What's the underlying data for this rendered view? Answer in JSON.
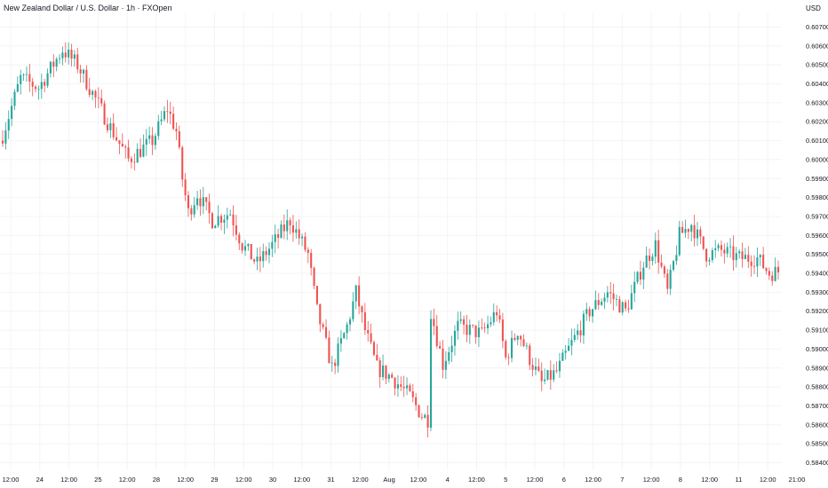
{
  "chart_data": {
    "type": "candlestick",
    "title": "New Zealand Dollar / U.S. Dollar · 1h · FXOpen",
    "currency": "USD",
    "ylim": [
      0.584,
      0.6072
    ],
    "y_ticks": [
      "0.60700",
      "0.60600",
      "0.60500",
      "0.60400",
      "0.60300",
      "0.60200",
      "0.60100",
      "0.60000",
      "0.59900",
      "0.59800",
      "0.59700",
      "0.59600",
      "0.59500",
      "0.59400",
      "0.59300",
      "0.59200",
      "0.59100",
      "0.59000",
      "0.58900",
      "0.58800",
      "0.58700",
      "0.58600",
      "0.58500",
      "0.58400"
    ],
    "x_ticks": [
      "12:00",
      "24",
      "12:00",
      "25",
      "12:00",
      "28",
      "12:00",
      "29",
      "12:00",
      "30",
      "12:00",
      "31",
      "12:00",
      "Aug",
      "12:00",
      "4",
      "12:00",
      "5",
      "12:00",
      "6",
      "12:00",
      "7",
      "12:00",
      "8",
      "12:00",
      "11",
      "12:00",
      "21:00"
    ],
    "candle_count": 260,
    "close_path": [
      [
        0,
        0.6013
      ],
      [
        6,
        0.6043
      ],
      [
        12,
        0.6038
      ],
      [
        20,
        0.6058
      ],
      [
        25,
        0.605
      ],
      [
        30,
        0.6035
      ],
      [
        36,
        0.6017
      ],
      [
        42,
        0.6
      ],
      [
        50,
        0.601
      ],
      [
        55,
        0.6027
      ],
      [
        58,
        0.6015
      ],
      [
        60,
        0.599
      ],
      [
        62,
        0.5972
      ],
      [
        65,
        0.5982
      ],
      [
        70,
        0.5968
      ],
      [
        76,
        0.5972
      ],
      [
        80,
        0.5955
      ],
      [
        85,
        0.5945
      ],
      [
        90,
        0.5955
      ],
      [
        96,
        0.5968
      ],
      [
        102,
        0.595
      ],
      [
        105,
        0.592
      ],
      [
        110,
        0.589
      ],
      [
        115,
        0.5912
      ],
      [
        118,
        0.593
      ],
      [
        121,
        0.591
      ],
      [
        125,
        0.589
      ],
      [
        130,
        0.5885
      ],
      [
        136,
        0.5875
      ],
      [
        140,
        0.5865
      ],
      [
        142,
        0.5863
      ],
      [
        143,
        0.592
      ],
      [
        147,
        0.5892
      ],
      [
        152,
        0.5912
      ],
      [
        160,
        0.5908
      ],
      [
        165,
        0.592
      ],
      [
        168,
        0.5895
      ],
      [
        172,
        0.591
      ],
      [
        176,
        0.5895
      ],
      [
        180,
        0.5882
      ],
      [
        185,
        0.5888
      ],
      [
        190,
        0.5903
      ],
      [
        196,
        0.592
      ],
      [
        202,
        0.593
      ],
      [
        208,
        0.592
      ],
      [
        214,
        0.5945
      ],
      [
        218,
        0.5955
      ],
      [
        222,
        0.593
      ],
      [
        226,
        0.596
      ],
      [
        230,
        0.5966
      ],
      [
        235,
        0.595
      ],
      [
        240,
        0.5952
      ],
      [
        246,
        0.5948
      ],
      [
        252,
        0.5948
      ],
      [
        256,
        0.594
      ],
      [
        259,
        0.5941
      ]
    ],
    "colors": {
      "up": "#26a69a",
      "down": "#ef5350",
      "grid": "#f3f4f6"
    },
    "grid": true
  }
}
